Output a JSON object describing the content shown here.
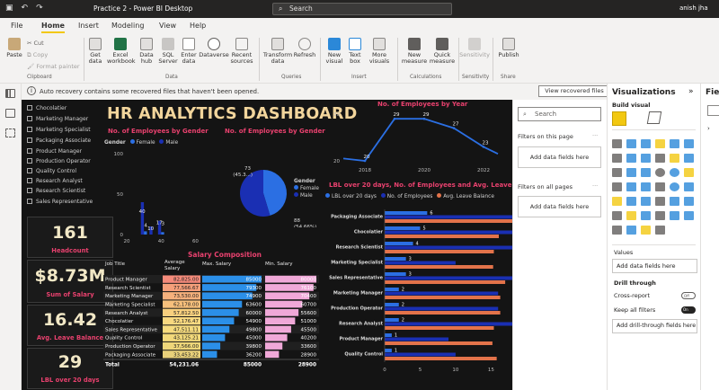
{
  "window": {
    "title": "Practice 2 - Power BI Desktop",
    "search_placeholder": "Search",
    "user": "anish jha"
  },
  "menu": [
    "File",
    "Home",
    "Insert",
    "Modeling",
    "View",
    "Help"
  ],
  "ribbon": {
    "paste": "Paste",
    "cut": "Cut",
    "copy": "Copy",
    "format_painter": "Format painter",
    "get_data": "Get\ndata",
    "excel": "Excel\nworkbook",
    "data_hub": "Data\nhub",
    "sql": "SQL\nServer",
    "enter_data": "Enter\ndata",
    "dataverse": "Dataverse",
    "recent_sources": "Recent\nsources",
    "transform": "Transform\ndata",
    "refresh": "Refresh",
    "new_visual": "New\nvisual",
    "text_box": "Text\nbox",
    "more_visuals": "More\nvisuals",
    "new_measure": "New\nmeasure",
    "quick_measure": "Quick\nmeasure",
    "sensitivity": "Sensitivity",
    "publish": "Publish",
    "groups": {
      "clipboard": "Clipboard",
      "data": "Data",
      "queries": "Queries",
      "insert": "Insert",
      "calculations": "Calculations",
      "sensitivity": "Sensitivity",
      "share": "Share"
    }
  },
  "infobar": {
    "message": "Auto recovery contains some recovered files that haven't been opened.",
    "button": "View recovered files"
  },
  "dashboard": {
    "title": "HR ANALYTICS DASHBOARD",
    "slicer_items": [
      "Chocolatier",
      "Marketing Manager",
      "Marketing Specialist",
      "Packaging Associate",
      "Product Manager",
      "Production Operator",
      "Quality Control",
      "Research Analyst",
      "Research Scientist",
      "Sales Representative"
    ],
    "kpis": [
      {
        "value": "161",
        "label": "Headcount"
      },
      {
        "value": "$8.73M",
        "label": "Sum of Salary"
      },
      {
        "value": "16.42",
        "label": "Avg. Leave Balance"
      },
      {
        "value": "29",
        "label": "LBL over 20 days"
      }
    ],
    "chart_titles": {
      "gender_bar": "No. of Employees by Gender",
      "gender_pie": "No. of Employees by Gender",
      "by_year": "No. of Employees by Year",
      "salary": "Salary Composition",
      "lbl": "LBL over 20 days, No. of Employees and Avg. Leave Balance"
    },
    "legend_gender_bar": [
      "Gender",
      "Female",
      "Male"
    ],
    "legend_pie_title": "Gender",
    "legend_pie": [
      "Female",
      "Male"
    ],
    "legend_lbl": [
      "LBL over 20 days",
      "No. of Employees",
      "Avg. Leave Balance"
    ],
    "pie_labels": {
      "female": "73\n(45.3...)",
      "male": "88\n(54.66%)"
    },
    "table": {
      "headers": [
        "Job Title",
        "Average\nSalary",
        "Max. Salary",
        "Min. Salary"
      ],
      "rows": [
        [
          "Product Manager",
          "82,825.00",
          "85000",
          "80000"
        ],
        [
          "Research Scientist",
          "77,566.67",
          "79300",
          "76100"
        ],
        [
          "Marketing Manager",
          "73,530.00",
          "74900",
          "70400"
        ],
        [
          "Marketing Specialist",
          "62,178.00",
          "63600",
          "60700"
        ],
        [
          "Research Analyst",
          "57,812.50",
          "60000",
          "55600"
        ],
        [
          "Chocolatier",
          "52,176.47",
          "54900",
          "51000"
        ],
        [
          "Sales Representative",
          "47,511.11",
          "49800",
          "45500"
        ],
        [
          "Quality Control",
          "43,125.21",
          "45000",
          "40200"
        ],
        [
          "Production Operator",
          "37,566.00",
          "39800",
          "33600"
        ],
        [
          "Packaging Associate",
          "33,453.22",
          "36200",
          "28900"
        ]
      ],
      "total": [
        "Total",
        "54,231.06",
        "85000",
        "28900"
      ]
    }
  },
  "chart_data": [
    {
      "type": "bar",
      "title": "No. of Employees by Gender",
      "x": [
        20,
        25,
        30,
        35,
        40,
        45,
        50,
        55
      ],
      "series": [
        {
          "name": "Female",
          "values": [
            0,
            0,
            4,
            0,
            3,
            0,
            0,
            0
          ]
        },
        {
          "name": "Male",
          "values": [
            0,
            0,
            40,
            10,
            17,
            0,
            0,
            0
          ]
        }
      ],
      "yticks": [
        "100",
        "50",
        "0"
      ],
      "xticks": [
        "20",
        "40",
        "60"
      ],
      "data_labels": [
        "40",
        "4",
        "3",
        "17",
        "10"
      ],
      "ylim": [
        0,
        100
      ]
    },
    {
      "type": "pie",
      "title": "No. of Employees by Gender",
      "categories": [
        "Female",
        "Male"
      ],
      "values": [
        73,
        88
      ]
    },
    {
      "type": "line",
      "title": "No. of Employees by Year",
      "x": [
        2018,
        2019,
        2020,
        2021,
        2022
      ],
      "values": [
        20,
        29,
        29,
        27,
        23
      ],
      "ylim": [
        20,
        30
      ]
    },
    {
      "type": "bar",
      "title": "LBL over 20 days, No. of Employees and Avg. Leave Balance",
      "categories": [
        "Packaging Associate",
        "Chocolatier",
        "Research Scientist",
        "Marketing Specialist",
        "Sales Representative",
        "Marketing Manager",
        "Production Operator",
        "Research Analyst",
        "Product Manager",
        "Quality Control"
      ],
      "series": [
        {
          "name": "LBL over 20 days",
          "values": [
            6,
            5,
            4,
            3,
            3,
            2,
            2,
            2,
            1,
            1
          ]
        },
        {
          "name": "No. of Employees",
          "values": [
            18,
            18,
            18,
            10,
            18,
            16,
            16,
            18,
            9,
            10
          ]
        },
        {
          "name": "Avg. Leave Balance",
          "values": [
            18,
            16.1,
            15.4,
            15.3,
            17,
            16.3,
            16.3,
            15.4,
            15.2,
            15.8
          ]
        }
      ],
      "data_labels": [
        "6",
        "5",
        "16.1",
        "4",
        "15.4",
        "3",
        "10",
        "15.3",
        "3",
        "2",
        "16.3",
        "2",
        "2",
        "16",
        "15.4",
        "1",
        "9",
        "15.2",
        "1",
        "10"
      ],
      "xticks": [
        "0",
        "5",
        "10",
        "15"
      ],
      "xlim": [
        0,
        18
      ]
    }
  ],
  "filters": {
    "search": "Search",
    "on_page": "Filters on this page",
    "on_all": "Filters on all pages",
    "add": "Add data fields here"
  },
  "viz": {
    "title": "Visualizations",
    "build": "Build visual",
    "values": "Values",
    "add_fields": "Add data fields here",
    "drill": "Drill through",
    "cross": "Cross-report",
    "cross_state": "Off",
    "keep": "Keep all filters",
    "keep_state": "On",
    "add_drill": "Add drill-through fields here"
  },
  "fields_tab": "Field"
}
